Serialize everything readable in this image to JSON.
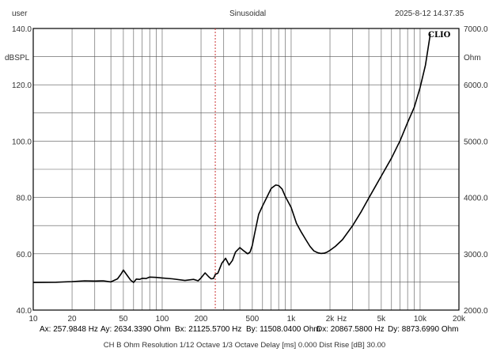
{
  "header": {
    "left": "user",
    "center": "Sinusoidal",
    "right": "2025-8-12 14.37.35"
  },
  "brand": "CLIO",
  "cursor_readouts": {
    "ax": "Ax: 257.9848 Hz",
    "ay": "Ay: 2634.3390 Ohm",
    "bx": "Bx: 21125.5700 Hz",
    "by": "By: 11508.0400 Ohm",
    "dx": "Dx: 20867.5800 Hz",
    "dy": "Dy: 8873.6990 Ohm",
    "colors": {
      "a": "#d9534f",
      "b": "#3a9a3a",
      "d": "#333333"
    }
  },
  "footer": "CH B   Ohm   Resolution 1/12 Octave   1/3 Octave   Delay [ms] 0.000   Dist Rise [dB] 30.00",
  "chart_data": {
    "type": "line",
    "x_scale": "log",
    "xlim": [
      10,
      20000
    ],
    "x_ticks": [
      10,
      20,
      50,
      100,
      200,
      500,
      1000,
      2000,
      5000,
      10000,
      20000
    ],
    "x_tick_labels": [
      "10",
      "20",
      "50",
      "100",
      "200",
      "500",
      "1k",
      "2k",
      "5k",
      "10k",
      "20k"
    ],
    "x_unit_label": "Hz",
    "ylabel": "dBSPL",
    "ylim": [
      40,
      140
    ],
    "y_ticks": [
      40,
      60,
      80,
      100,
      120,
      140
    ],
    "y_tick_labels": [
      "40.0",
      "60.0",
      "80.0",
      "100.0",
      "120.0",
      "140.0"
    ],
    "y2label": "Ohm",
    "y2lim": [
      2000,
      7000
    ],
    "y2_ticks": [
      2000,
      3000,
      4000,
      5000,
      6000,
      7000
    ],
    "y2_tick_labels": [
      "2000.0",
      "3000.0",
      "4000.0",
      "5000.0",
      "6000.0",
      "7000.0"
    ],
    "grid": true,
    "line_color": "#000000",
    "cursor_color": "#cc3333",
    "cursor_x": 257.98,
    "series": [
      {
        "axis": "right",
        "x": [
          10,
          15,
          20,
          25,
          30,
          35,
          40,
          45,
          48,
          50,
          53,
          57,
          60,
          63,
          67,
          70,
          75,
          80,
          90,
          100,
          120,
          150,
          175,
          190,
          200,
          215,
          230,
          240,
          250,
          258,
          270,
          290,
          310,
          330,
          350,
          370,
          400,
          430,
          460,
          480,
          500,
          520,
          560,
          600,
          650,
          700,
          760,
          800,
          850,
          900,
          1000,
          1100,
          1200,
          1300,
          1400,
          1500,
          1600,
          1700,
          1800,
          1900,
          2000,
          2200,
          2500,
          3000,
          3500,
          4000,
          5000,
          6000,
          7000,
          8000,
          9000,
          10000,
          11000,
          12000
        ],
        "y": [
          2490,
          2495,
          2505,
          2520,
          2515,
          2520,
          2500,
          2555,
          2640,
          2710,
          2630,
          2530,
          2490,
          2550,
          2545,
          2565,
          2560,
          2585,
          2580,
          2570,
          2555,
          2525,
          2545,
          2520,
          2570,
          2660,
          2590,
          2555,
          2560,
          2634,
          2655,
          2830,
          2920,
          2800,
          2880,
          3030,
          3110,
          3050,
          3000,
          3030,
          3150,
          3350,
          3700,
          3850,
          4010,
          4160,
          4220,
          4210,
          4150,
          4020,
          3820,
          3540,
          3380,
          3250,
          3130,
          3050,
          3020,
          3005,
          3010,
          3030,
          3060,
          3130,
          3250,
          3500,
          3750,
          3990,
          4380,
          4700,
          5010,
          5330,
          5600,
          5950,
          6350,
          6900
        ]
      }
    ]
  }
}
